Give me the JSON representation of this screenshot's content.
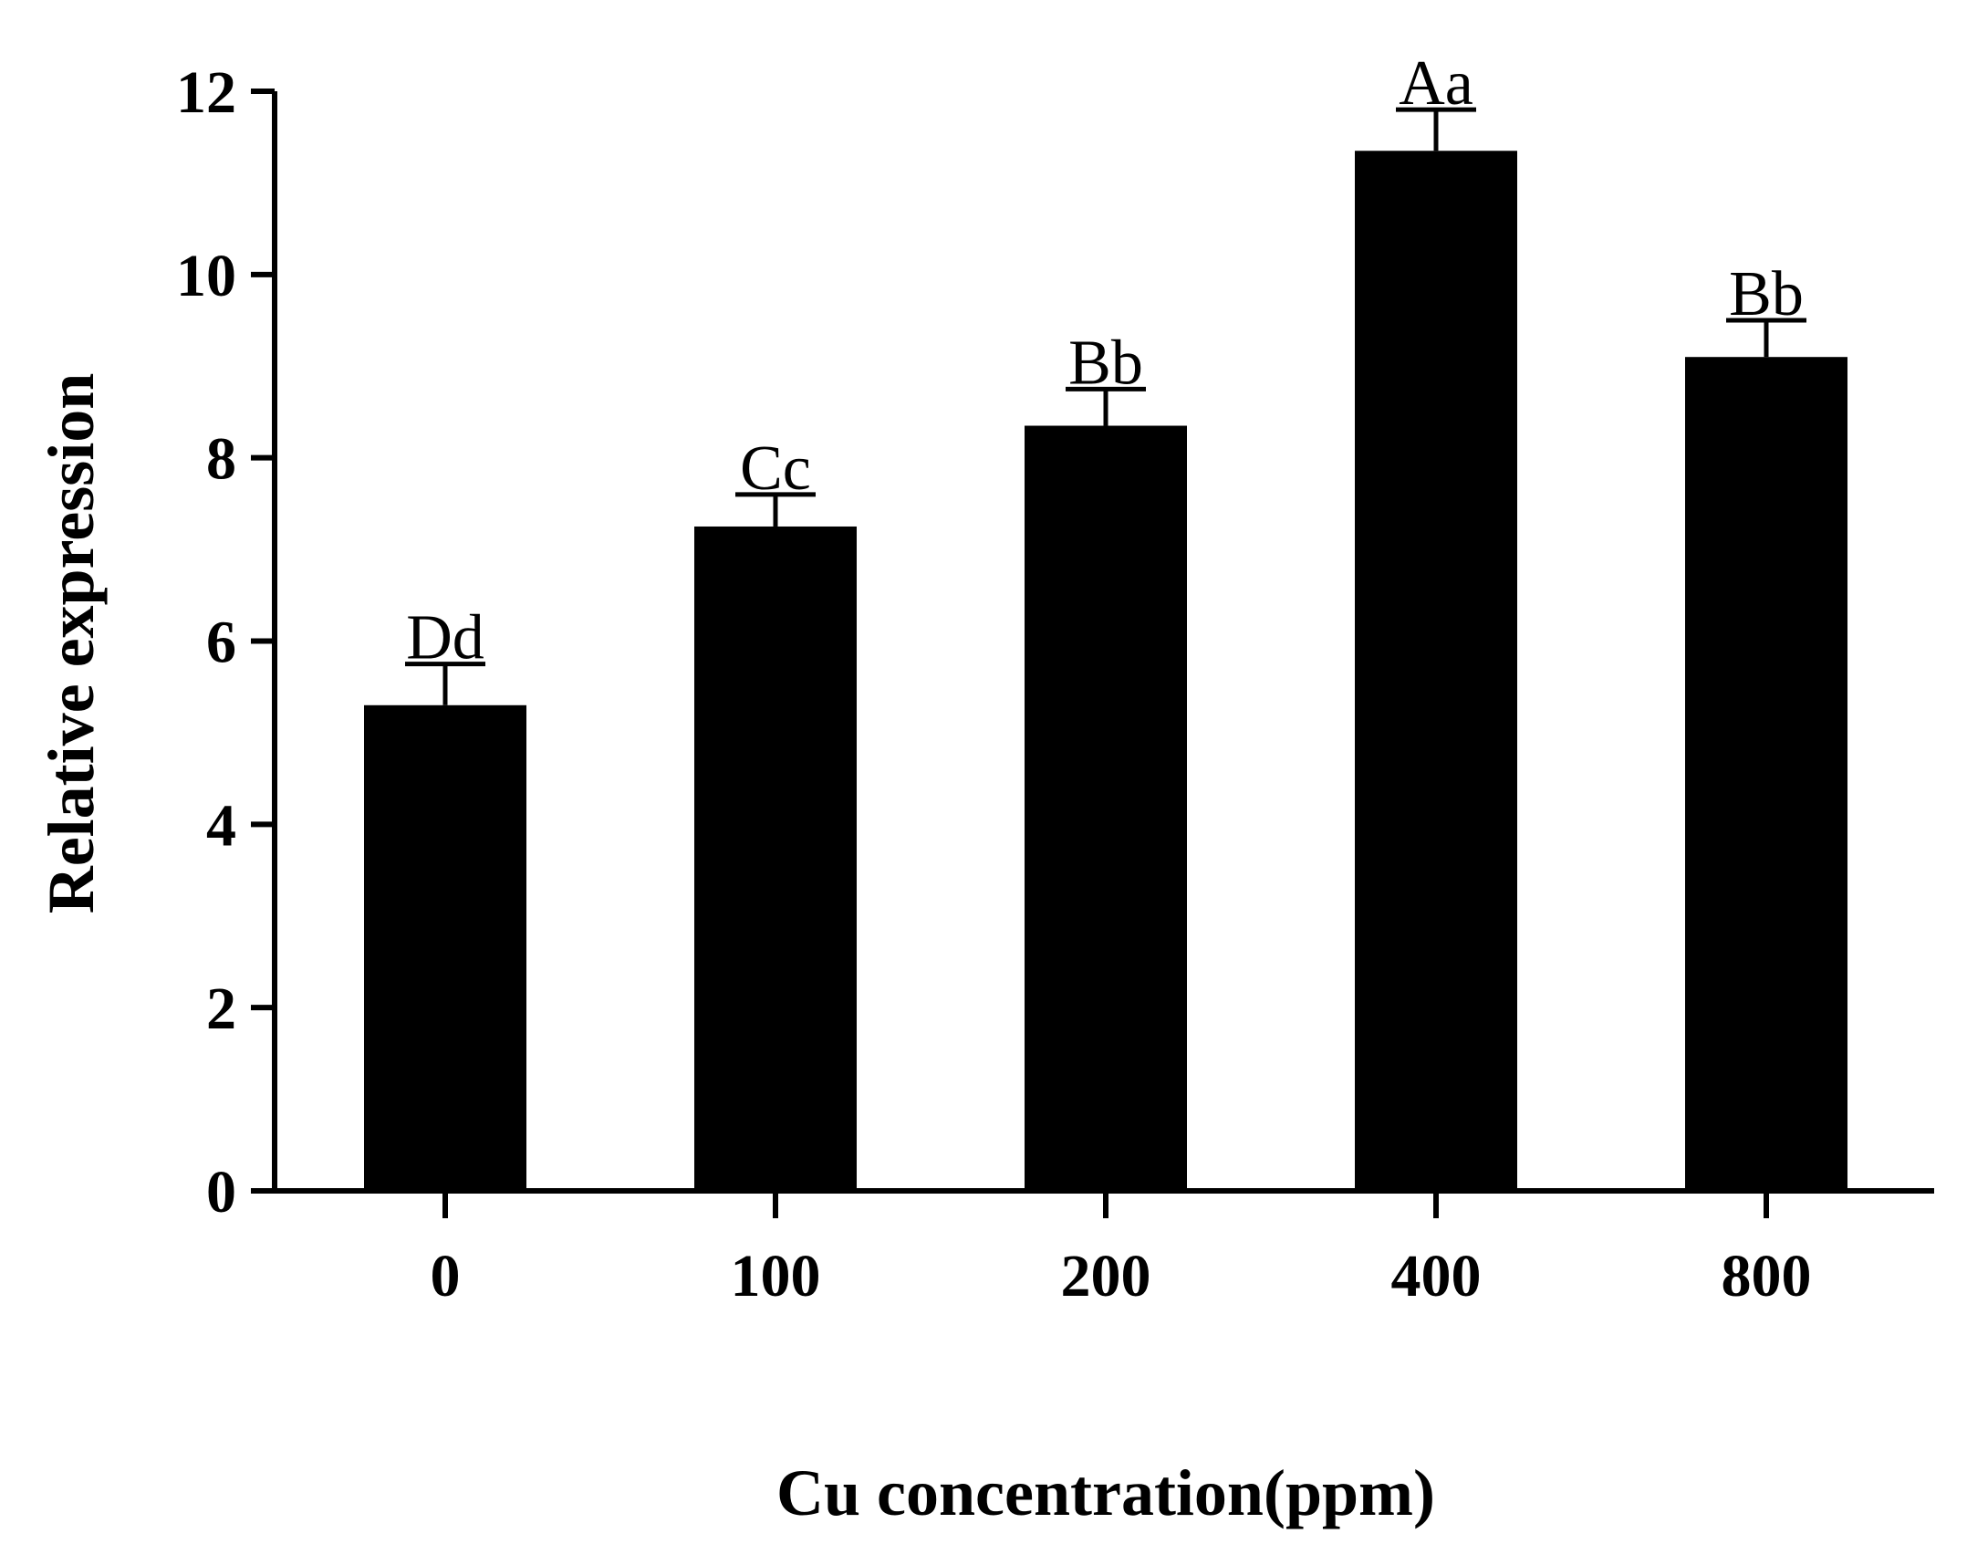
{
  "chart_data": {
    "type": "bar",
    "title": "",
    "xlabel": "Cu concentration(ppm)",
    "ylabel": "Relative expression",
    "ylim": [
      0,
      12
    ],
    "yticks": [
      "0",
      "2",
      "4",
      "6",
      "8",
      "10",
      "12"
    ],
    "categories": [
      "0",
      "100",
      "200",
      "400",
      "800"
    ],
    "values": [
      5.3,
      7.25,
      8.35,
      11.35,
      9.1
    ],
    "errors": [
      0.45,
      0.35,
      0.4,
      0.45,
      0.4
    ],
    "significance_labels": [
      "Dd",
      "Cc",
      "Bb",
      "Aa",
      "Bb"
    ],
    "bar_color": "#000000",
    "grid": false,
    "legend": "none"
  }
}
